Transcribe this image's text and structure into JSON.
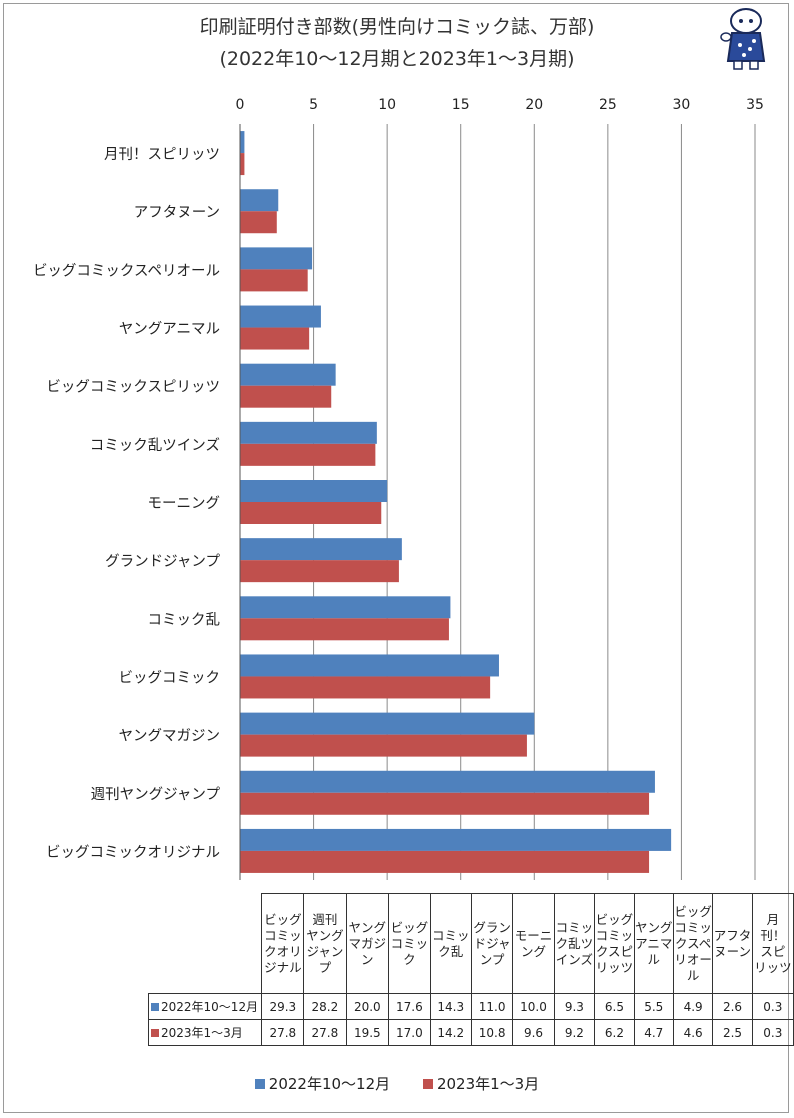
{
  "title_line1": "印刷証明付き部数(男性向けコミック誌、万部)",
  "title_line2": "(2022年10～12月期と2023年1～3月期)",
  "colors": {
    "series1": "#4f81bd",
    "series2": "#c0504d"
  },
  "chart_data": {
    "type": "bar",
    "orientation": "horizontal",
    "categories": [
      "月刊！スピリッツ",
      "アフタヌーン",
      "ビッグコミックスペリオール",
      "ヤングアニマル",
      "ビッグコミックスピリッツ",
      "コミック乱ツインズ",
      "モーニング",
      "グランドジャンプ",
      "コミック乱",
      "ビッグコミック",
      "ヤングマガジン",
      "週刊ヤングジャンプ",
      "ビッグコミックオリジナル"
    ],
    "series": [
      {
        "name": "2022年10～12月",
        "values": [
          0.3,
          2.6,
          4.9,
          5.5,
          6.5,
          9.3,
          10.0,
          11.0,
          14.3,
          17.6,
          20.0,
          28.2,
          29.3
        ]
      },
      {
        "name": "2023年1～3月",
        "values": [
          0.3,
          2.5,
          4.6,
          4.7,
          6.2,
          9.2,
          9.6,
          10.8,
          14.2,
          17.0,
          19.5,
          27.8,
          27.8
        ]
      }
    ],
    "xlim": [
      0,
      35
    ],
    "xticks": [
      "0",
      "5",
      "10",
      "15",
      "20",
      "25",
      "30",
      "35"
    ],
    "grid": true,
    "legend_position": "bottom"
  },
  "table": {
    "headers": [
      "ビッグ\nコミッ\nクオリ\nジナル",
      "週刊\nヤング\nジャン\nプ",
      "ヤング\nマガジ\nン",
      "ビッグ\nコミッ\nク",
      "コミッ\nク乱",
      "グラン\nドジャ\nンプ",
      "モーニ\nング",
      "コミッ\nク乱ツ\nインズ",
      "ビッグ\nコミッ\nクスピ\nリッツ",
      "ヤング\nアニマ\nル",
      "ビッグ\nコミッ\nクスペ\nリオー\nル",
      "アフタ\nヌーン",
      "月\n刊！\nスピ\nリッツ"
    ],
    "rows": [
      {
        "label": "2022年10～12月",
        "values": [
          "29.3",
          "28.2",
          "20.0",
          "17.6",
          "14.3",
          "11.0",
          "10.0",
          "9.3",
          "6.5",
          "5.5",
          "4.9",
          "2.6",
          "0.3"
        ]
      },
      {
        "label": "2023年1～3月",
        "values": [
          "27.8",
          "27.8",
          "19.5",
          "17.0",
          "14.2",
          "10.8",
          "9.6",
          "9.2",
          "6.2",
          "4.7",
          "4.6",
          "2.5",
          "0.3"
        ]
      }
    ]
  }
}
